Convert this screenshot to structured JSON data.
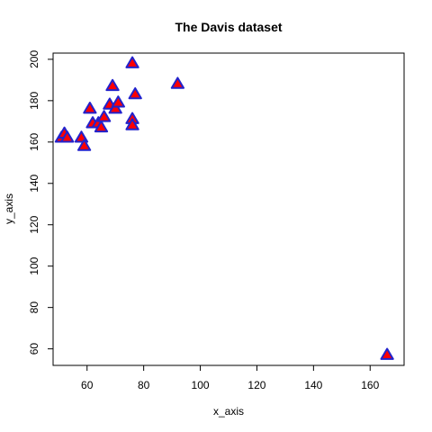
{
  "chart_data": {
    "type": "scatter",
    "title": "The Davis dataset",
    "xlabel": "x_axis",
    "ylabel": "y_axis",
    "xlim": [
      48,
      172
    ],
    "ylim": [
      52,
      203
    ],
    "xticks": [
      60,
      80,
      100,
      120,
      140,
      160
    ],
    "yticks": [
      60,
      80,
      100,
      120,
      140,
      160,
      180,
      200
    ],
    "grid": false,
    "legend": "none",
    "marker": {
      "shape": "triangle",
      "fill": "#ff0000",
      "stroke": "#2222cc"
    },
    "x": [
      51,
      52,
      53,
      58,
      59,
      61,
      62,
      64,
      65,
      66,
      68,
      69,
      70,
      71,
      76,
      76,
      76,
      77,
      92,
      166
    ],
    "y": [
      162,
      164,
      162,
      162,
      158,
      176,
      169,
      169,
      167,
      172,
      178,
      187,
      176,
      179,
      198,
      171,
      168,
      183,
      188,
      57
    ]
  }
}
